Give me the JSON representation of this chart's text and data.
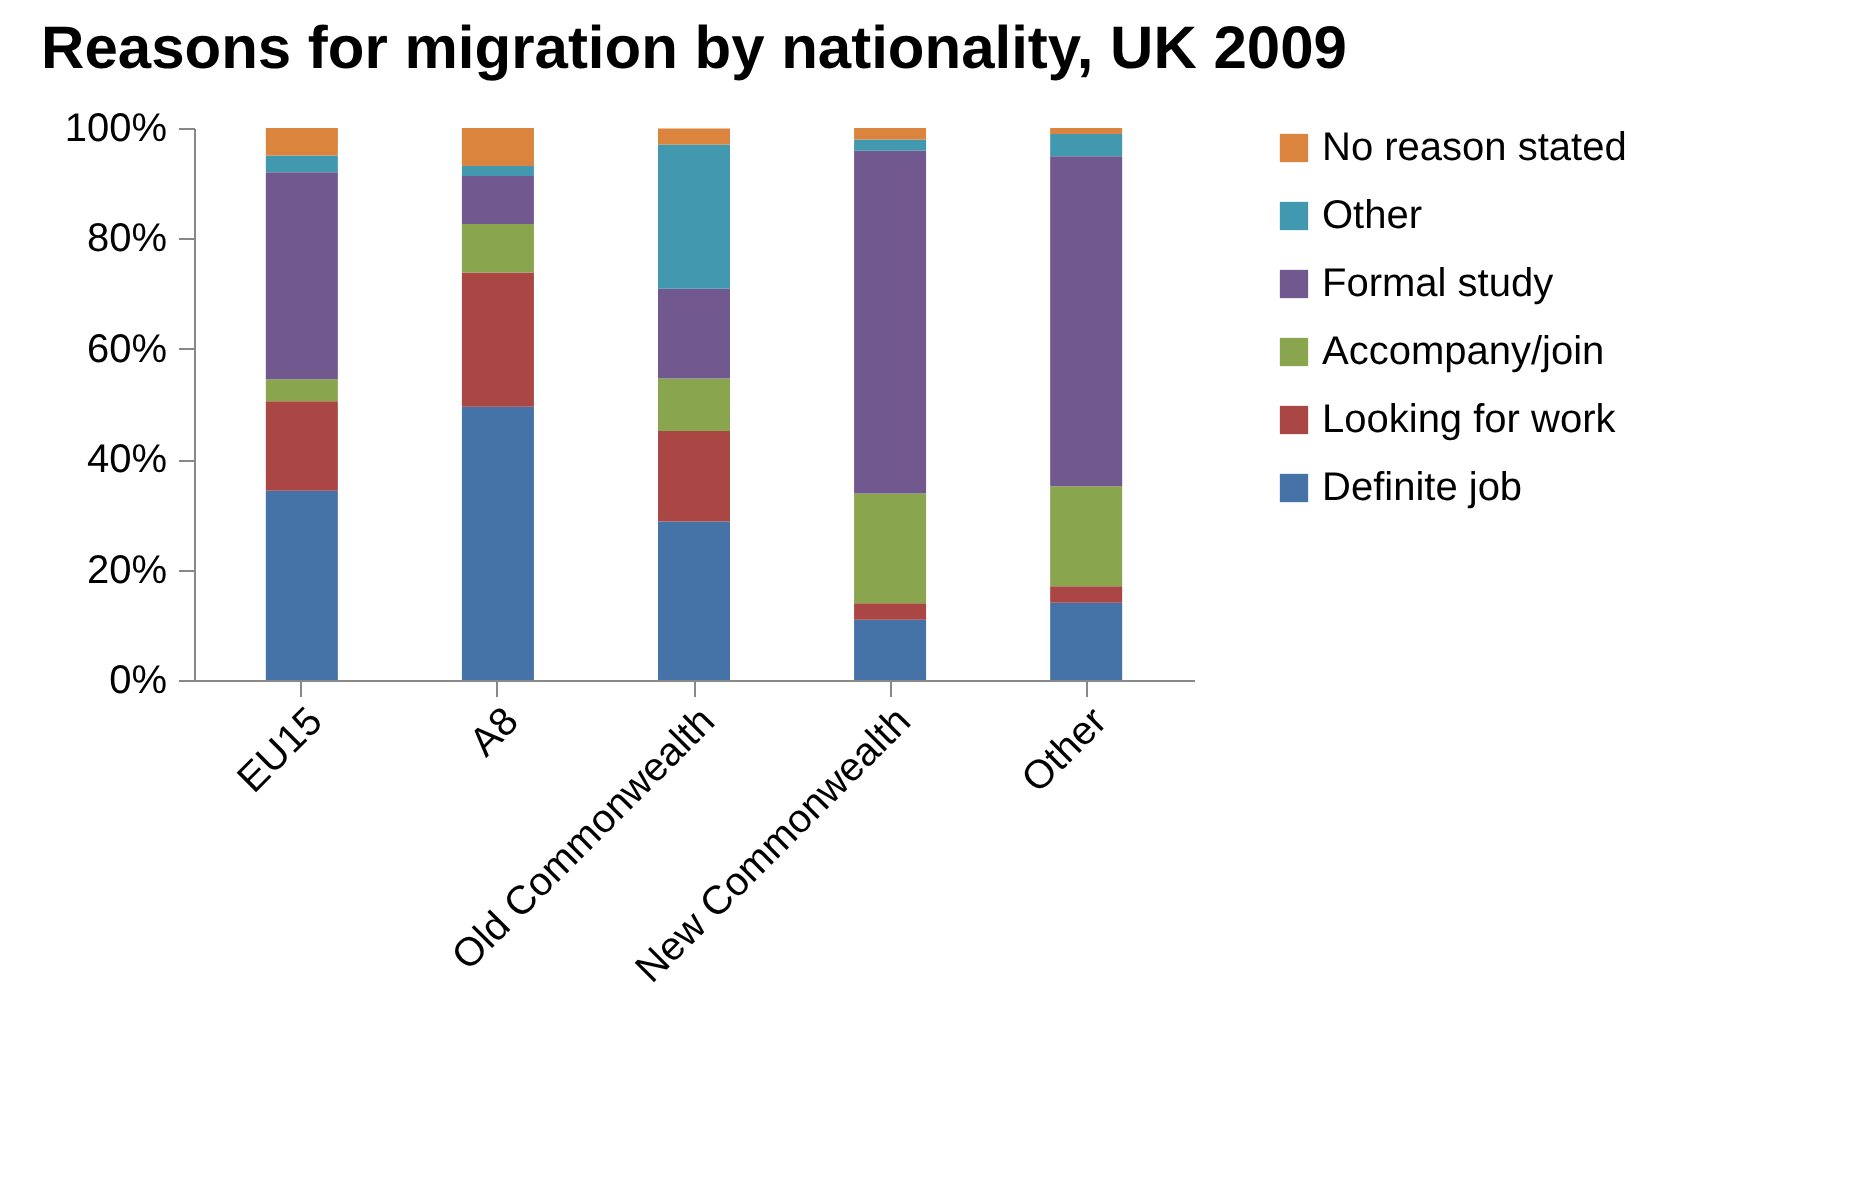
{
  "chart_data": {
    "type": "bar",
    "title": "Reasons for migration by nationality, UK 2009",
    "categories": [
      "EU15",
      "A8",
      "Old Commonwealth",
      "New Commonwealth",
      "Other"
    ],
    "stacked": true,
    "series": [
      {
        "name": "Definite job",
        "color": "#4572a7",
        "values": [
          34.3,
          49.5,
          28.7,
          10.9,
          14
        ]
      },
      {
        "name": "Looking for work",
        "color": "#aa4643",
        "values": [
          16.2,
          24.3,
          16.4,
          3,
          3
        ]
      },
      {
        "name": "Accompany/join",
        "color": "#89a54e",
        "values": [
          4,
          8.8,
          9.5,
          19.9,
          18.1
        ]
      },
      {
        "name": "Formal study",
        "color": "#71588f",
        "values": [
          37.5,
          8.7,
          16.3,
          62.1,
          59.8
        ]
      },
      {
        "name": "Other",
        "color": "#4198af",
        "values": [
          3,
          1.8,
          26.1,
          2,
          4
        ]
      },
      {
        "name": "No reason stated",
        "color": "#db843d",
        "values": [
          5,
          6.9,
          2.9,
          2.1,
          1.1
        ]
      }
    ],
    "ylim": [
      0,
      100
    ],
    "yticks": [
      {
        "value": 0,
        "label": "0%"
      },
      {
        "value": 20,
        "label": "20%"
      },
      {
        "value": 40,
        "label": "40%"
      },
      {
        "value": 60,
        "label": "60%"
      },
      {
        "value": 80,
        "label": "80%"
      },
      {
        "value": 100,
        "label": "100%"
      }
    ],
    "grid": false,
    "legend": "right"
  }
}
